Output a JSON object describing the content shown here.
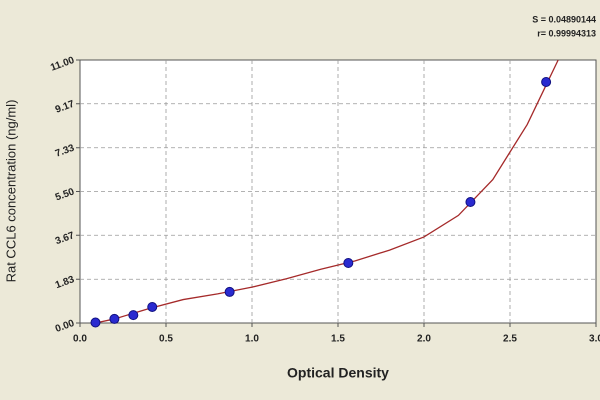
{
  "chart_data": {
    "type": "scatter",
    "x_label": "Optical Density",
    "y_label": "Rat CCL6 concentration (ng/ml)",
    "annotations": [
      "S = 0.04890144",
      "r= 0.99994313"
    ],
    "x": [
      0.09,
      0.2,
      0.31,
      0.42,
      0.87,
      1.56,
      2.27,
      2.71
    ],
    "values": [
      0.02,
      0.17,
      0.33,
      0.67,
      1.3,
      2.51,
      5.06,
      10.08
    ],
    "color": "#2a2ad0",
    "fit": {
      "x": [
        0.09,
        0.2,
        0.4,
        0.6,
        0.8,
        1.0,
        1.2,
        1.4,
        1.6,
        1.8,
        2.0,
        2.2,
        2.4,
        2.6,
        2.7,
        2.78
      ],
      "values": [
        0.0,
        0.17,
        0.6,
        0.98,
        1.22,
        1.5,
        1.85,
        2.25,
        2.6,
        3.05,
        3.6,
        4.5,
        6.0,
        8.3,
        9.8,
        11.0
      ],
      "color": "#a52a2a"
    },
    "xlim": [
      0,
      3
    ],
    "ylim": [
      0,
      11
    ],
    "xticks": [
      {
        "value": 0,
        "label": "0.0"
      },
      0.5,
      {
        "value": 1,
        "label": "1.0"
      },
      1.5,
      {
        "value": 2,
        "label": "2.0"
      },
      2.5,
      {
        "value": 3,
        "label": "3.0"
      }
    ],
    "yticks": [
      {
        "value": 0,
        "label": "0.00"
      },
      1.83,
      3.67,
      {
        "value": 5.5,
        "label": "5.50"
      },
      7.33,
      9.17,
      {
        "value": 11,
        "label": "11.00"
      }
    ],
    "grid": true
  }
}
